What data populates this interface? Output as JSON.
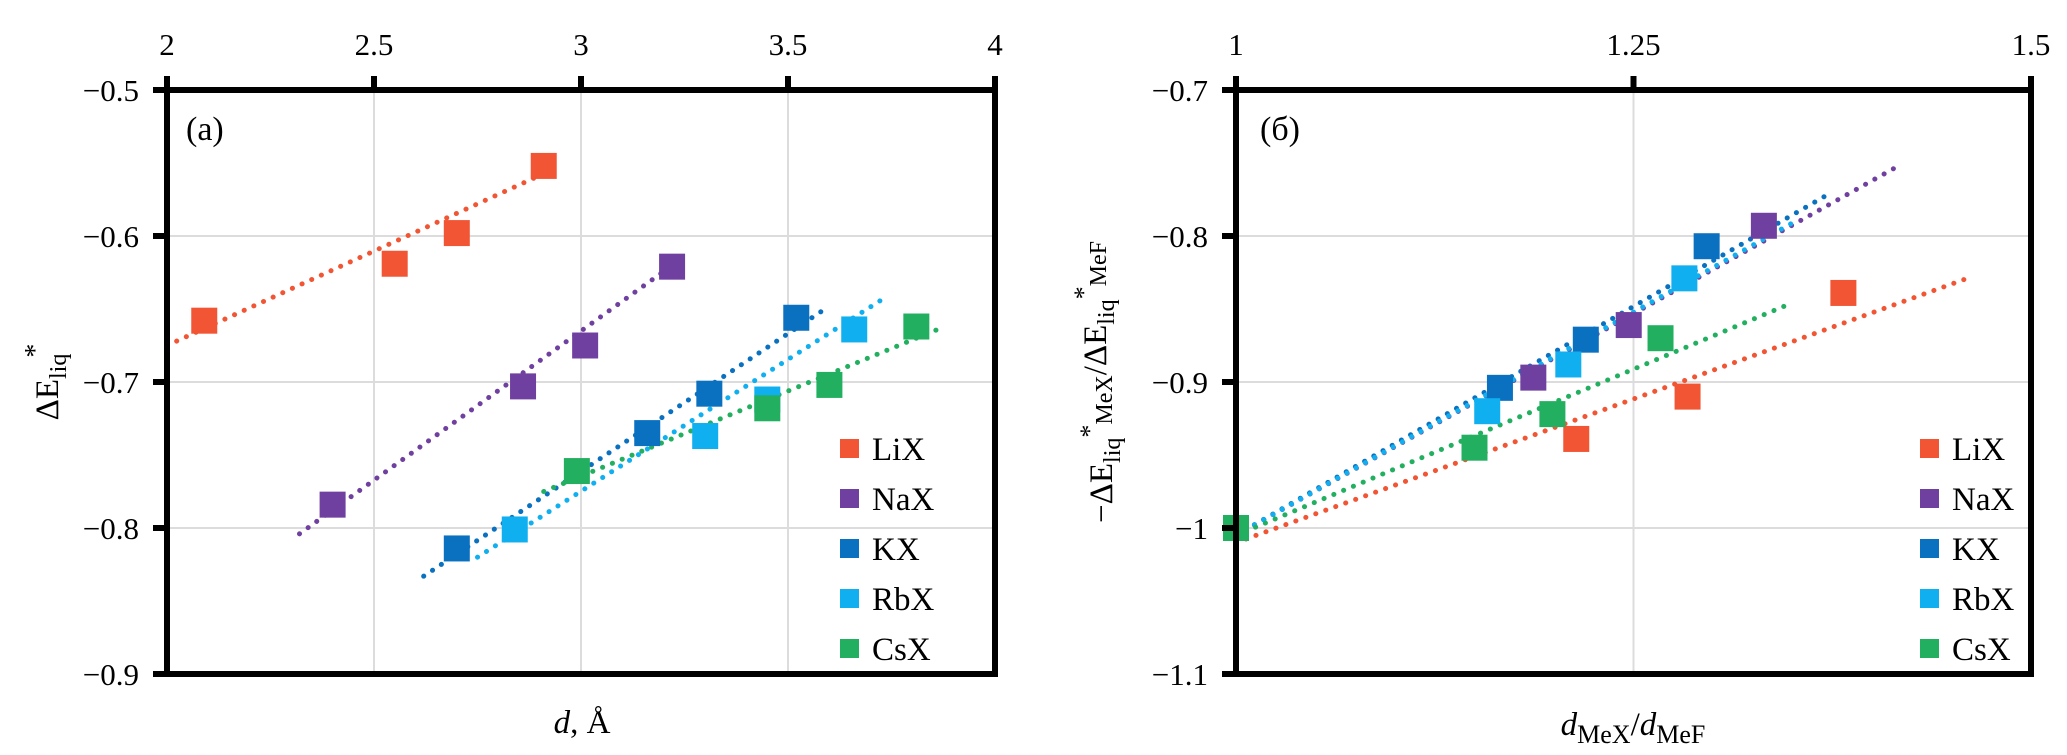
{
  "chart_data": [
    {
      "type": "scatter",
      "panel_label": "(a)",
      "title": "",
      "xlabel_italic": "d",
      "xlabel_rest": ", Å",
      "ylabel_main": "ΔE",
      "ylabel_sub": "liq",
      "ylabel_sup": "*",
      "xlim": [
        2,
        4
      ],
      "ylim": [
        -0.9,
        -0.5
      ],
      "xticks": [
        2,
        2.5,
        3,
        3.5,
        4
      ],
      "xtick_labels": [
        "2",
        "2.5",
        "3",
        "3.5",
        "4"
      ],
      "yticks": [
        -0.5,
        -0.6,
        -0.7,
        -0.8,
        -0.9
      ],
      "ytick_labels": [
        "−0.5",
        "−0.6",
        "−0.7",
        "−0.8",
        "−0.9"
      ],
      "x_axis_position": "top",
      "grid": true,
      "legend_position": "bottom-right",
      "series": [
        {
          "name": "LiX",
          "color": "#F15533",
          "points": [
            [
              2.09,
              -0.658
            ],
            [
              2.55,
              -0.619
            ],
            [
              2.7,
              -0.598
            ],
            [
              2.91,
              -0.552
            ]
          ],
          "trendline": [
            [
              2.0,
              -0.675
            ],
            [
              2.92,
              -0.556
            ]
          ]
        },
        {
          "name": "NaX",
          "color": "#7040A0",
          "points": [
            [
              2.4,
              -0.784
            ],
            [
              2.86,
              -0.703
            ],
            [
              3.01,
              -0.675
            ],
            [
              3.22,
              -0.621
            ]
          ],
          "trendline": [
            [
              2.32,
              -0.804
            ],
            [
              3.25,
              -0.614
            ]
          ]
        },
        {
          "name": "KX",
          "color": "#0A70C0",
          "points": [
            [
              2.7,
              -0.814
            ],
            [
              3.16,
              -0.735
            ],
            [
              3.31,
              -0.708
            ],
            [
              3.52,
              -0.656
            ]
          ],
          "trendline": [
            [
              2.62,
              -0.833
            ],
            [
              3.6,
              -0.648
            ]
          ]
        },
        {
          "name": "RbX",
          "color": "#10B0F0",
          "points": [
            [
              2.84,
              -0.801
            ],
            [
              3.3,
              -0.737
            ],
            [
              3.45,
              -0.712
            ],
            [
              3.66,
              -0.664
            ]
          ],
          "trendline": [
            [
              2.75,
              -0.82
            ],
            [
              3.73,
              -0.643
            ]
          ]
        },
        {
          "name": "CsX",
          "color": "#22B060",
          "points": [
            [
              2.99,
              -0.761
            ],
            [
              3.45,
              -0.718
            ],
            [
              3.6,
              -0.702
            ],
            [
              3.81,
              -0.662
            ]
          ],
          "trendline": [
            [
              2.91,
              -0.775
            ],
            [
              3.87,
              -0.663
            ]
          ]
        }
      ]
    },
    {
      "type": "scatter",
      "panel_label": "(б)",
      "title": "",
      "xlabel_d1": "d",
      "xlabel_sub1": "MeX",
      "xlabel_slash": "/",
      "xlabel_d2": "d",
      "xlabel_sub2": "MeF",
      "ylabel_text": "−ΔE",
      "ylabel_sub1": "liq",
      "ylabel_sup1": "*",
      "ylabel_sub1b": "MeX",
      "ylabel_mid": "/ΔE",
      "ylabel_sub2": "liq",
      "ylabel_sup2": "*",
      "ylabel_sub2b": "MeF",
      "xlim": [
        1,
        1.5
      ],
      "ylim": [
        -1.1,
        -0.7
      ],
      "xticks": [
        1,
        1.25,
        1.5
      ],
      "xtick_labels": [
        "1",
        "1.25",
        "1.5"
      ],
      "yticks": [
        -0.7,
        -0.8,
        -0.9,
        -1.0,
        -1.1
      ],
      "ytick_labels": [
        "−0.7",
        "−0.8",
        "−0.9",
        "−1",
        "−1.1"
      ],
      "x_axis_position": "top",
      "grid": true,
      "legend_position": "bottom-right",
      "series": [
        {
          "name": "LiX",
          "color": "#F15533",
          "points": [
            [
              1.0,
              -1.0
            ],
            [
              1.214,
              -0.939
            ],
            [
              1.284,
              -0.91
            ],
            [
              1.382,
              -0.839
            ]
          ],
          "trendline": [
            [
              1.0,
              -1.01
            ],
            [
              1.46,
              -0.829
            ]
          ]
        },
        {
          "name": "NaX",
          "color": "#7040A0",
          "points": [
            [
              1.0,
              -1.0
            ],
            [
              1.187,
              -0.897
            ],
            [
              1.247,
              -0.861
            ],
            [
              1.332,
              -0.793
            ]
          ],
          "trendline": [
            [
              1.0,
              -1.005
            ],
            [
              1.415,
              -0.753
            ]
          ]
        },
        {
          "name": "KX",
          "color": "#0A70C0",
          "points": [
            [
              1.0,
              -1.0
            ],
            [
              1.166,
              -0.904
            ],
            [
              1.22,
              -0.871
            ],
            [
              1.296,
              -0.807
            ]
          ],
          "trendline": [
            [
              1.0,
              -1.005
            ],
            [
              1.37,
              -0.773
            ]
          ]
        },
        {
          "name": "RbX",
          "color": "#10B0F0",
          "points": [
            [
              1.0,
              -1.0
            ],
            [
              1.158,
              -0.92
            ],
            [
              1.209,
              -0.888
            ],
            [
              1.282,
              -0.829
            ]
          ],
          "trendline": [
            [
              1.0,
              -1.005
            ],
            [
              1.35,
              -0.791
            ]
          ]
        },
        {
          "name": "CsX",
          "color": "#22B060",
          "points": [
            [
              1.0,
              -1.0
            ],
            [
              1.15,
              -0.945
            ],
            [
              1.199,
              -0.922
            ],
            [
              1.267,
              -0.87
            ]
          ],
          "trendline": [
            [
              1.0,
              -1.005
            ],
            [
              1.345,
              -0.848
            ]
          ]
        }
      ]
    }
  ]
}
